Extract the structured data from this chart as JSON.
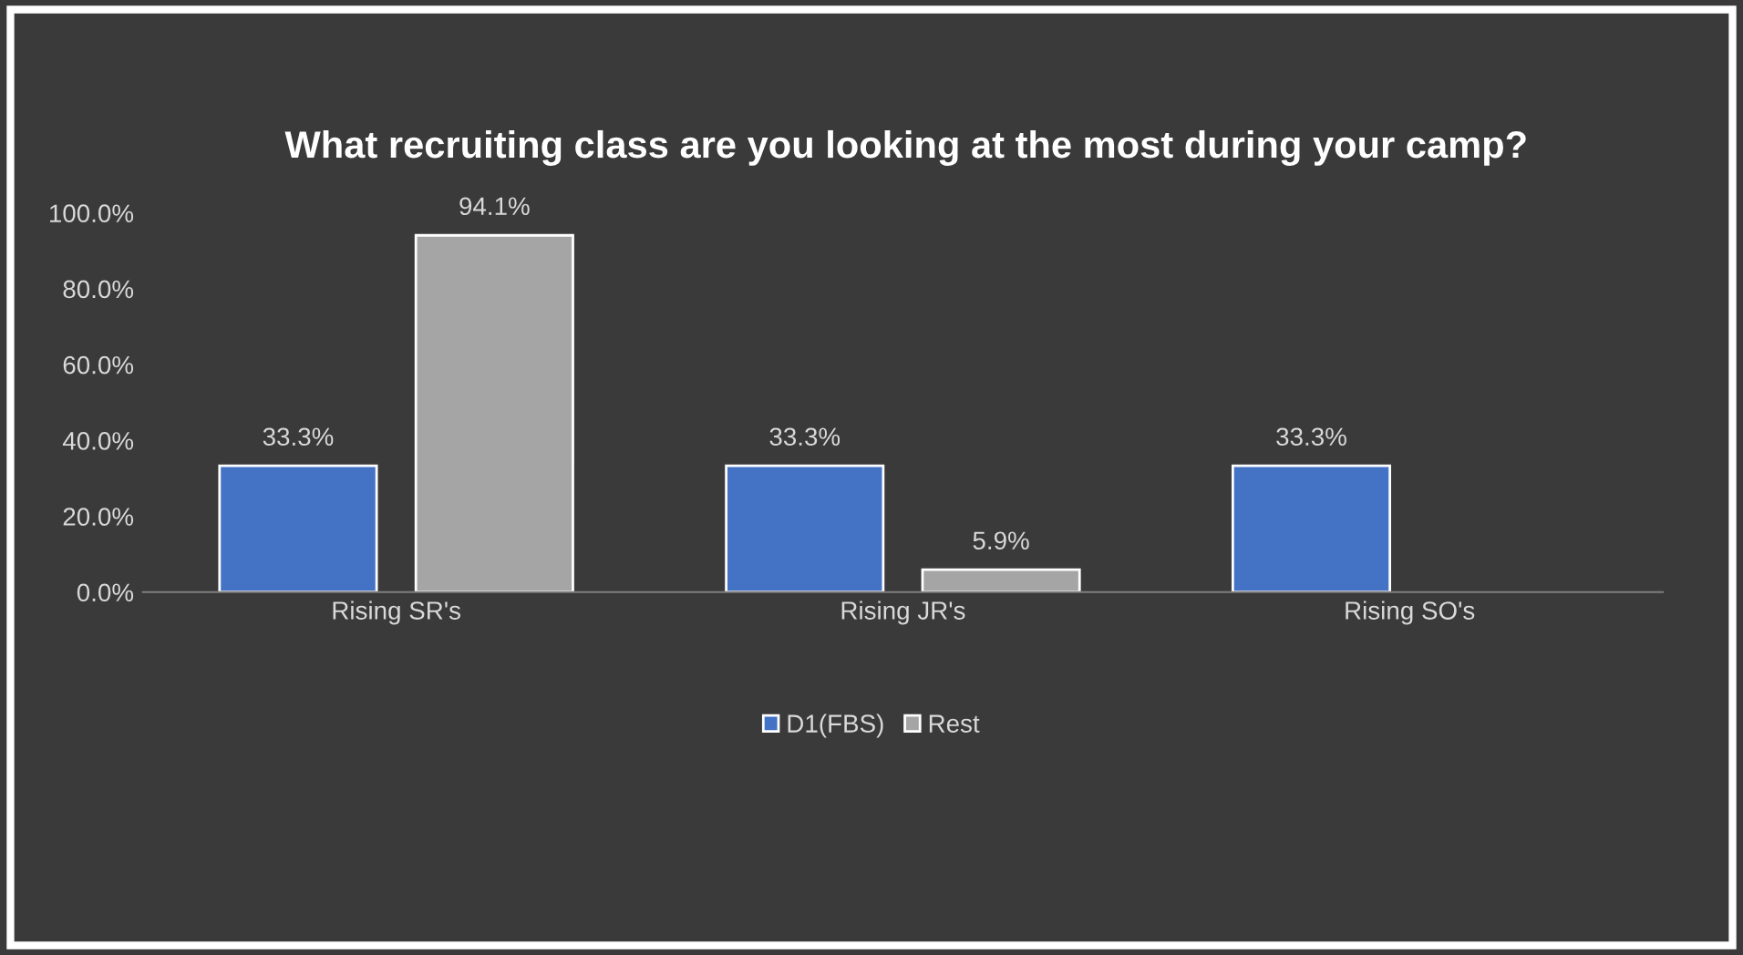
{
  "chart_data": {
    "type": "bar",
    "title": "What recruiting class are you looking at the most during your camp?",
    "categories": [
      "Rising SR's",
      "Rising JR's",
      "Rising SO's"
    ],
    "series": [
      {
        "name": "D1(FBS)",
        "color": "#4472c4",
        "values": [
          33.3,
          33.3,
          33.3
        ],
        "value_labels": [
          "33.3%",
          "33.3%",
          "33.3%"
        ]
      },
      {
        "name": "Rest",
        "color": "#a5a5a5",
        "values": [
          94.1,
          5.9,
          null
        ],
        "value_labels": [
          "94.1%",
          "5.9%",
          null
        ]
      }
    ],
    "ylim": [
      0,
      100
    ],
    "yticks": [
      {
        "value": 0,
        "label": "0.0%"
      },
      {
        "value": 20,
        "label": "20.0%"
      },
      {
        "value": 40,
        "label": "40.0%"
      },
      {
        "value": 60,
        "label": "60.0%"
      },
      {
        "value": 80,
        "label": "80.0%"
      },
      {
        "value": 100,
        "label": "100.0%"
      }
    ],
    "grid": false,
    "legend": "bottom"
  }
}
